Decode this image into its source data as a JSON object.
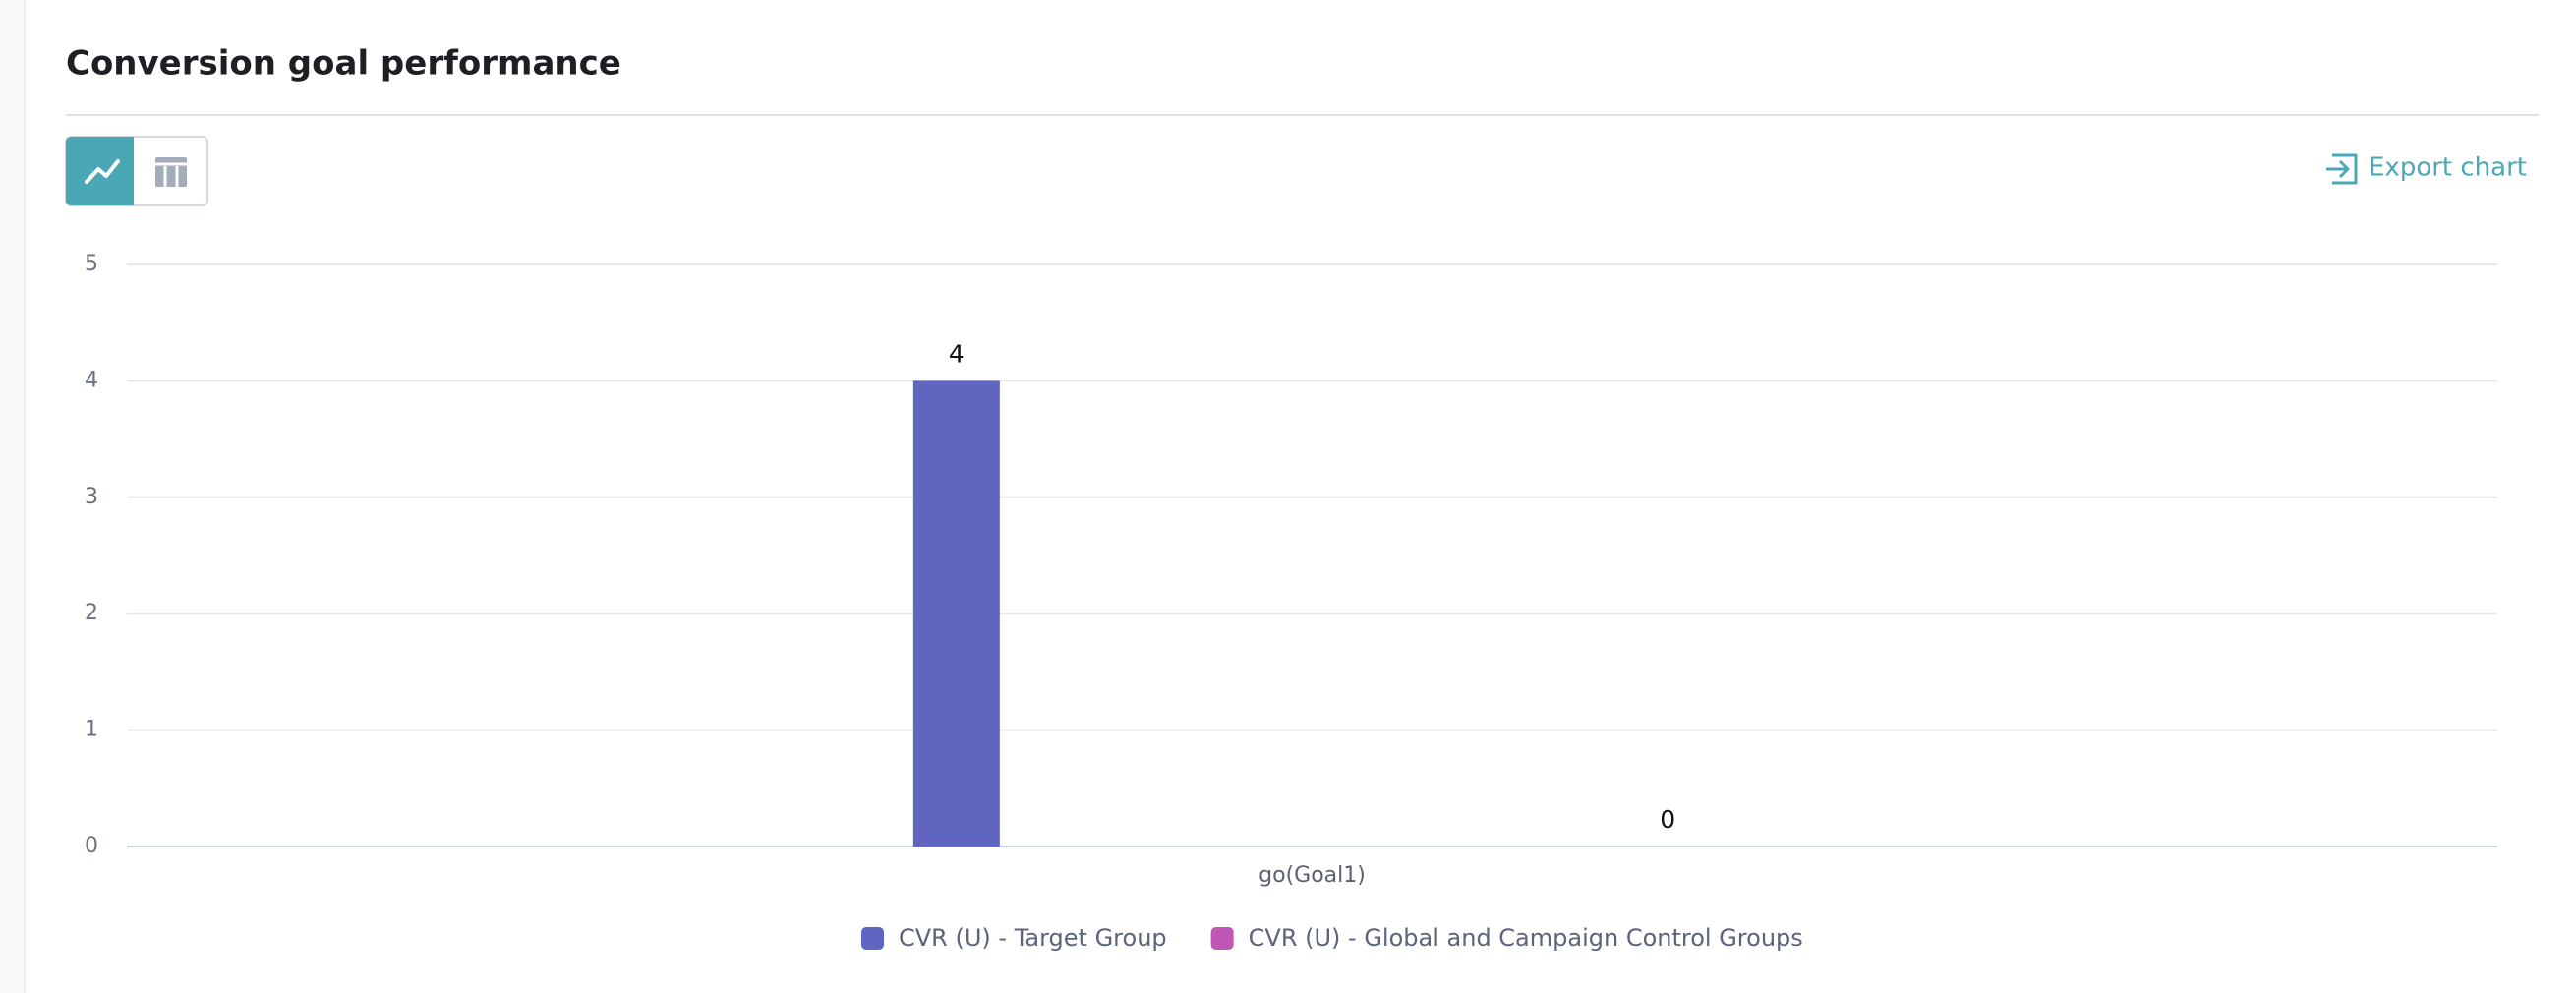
{
  "chart_data": {
    "type": "bar",
    "title": "Conversion goal performance",
    "export_label": "Export chart",
    "categories": [
      "go(Goal1)"
    ],
    "series": [
      {
        "name": "CVR (U) - Target Group",
        "color": "#6065c0",
        "values": [
          4
        ]
      },
      {
        "name": "CVR (U) - Global and Campaign Control Groups",
        "color": "#c157b5",
        "values": [
          0
        ]
      }
    ],
    "ylim": [
      0,
      5
    ],
    "yticks": [
      0,
      1,
      2,
      3,
      4,
      5
    ],
    "grid": true
  }
}
